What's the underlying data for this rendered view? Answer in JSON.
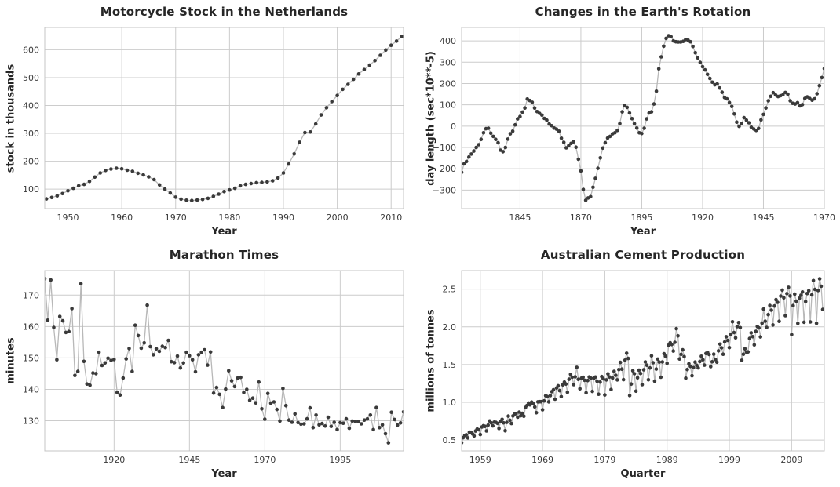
{
  "figure_title": "",
  "style": {
    "background": "#ffffff",
    "point_color": "#3a3a3a",
    "line_color": "#b8b8b8",
    "grid_color": "#cccccc",
    "spine_color": "#c4c4c4",
    "title_color": "#262626",
    "tick_color": "#3a3a3a"
  },
  "chart_data": [
    {
      "type": "line",
      "title": "Motorcycle Stock in the Netherlands",
      "xlabel": "Year",
      "ylabel": "stock in thousands",
      "x_start": 1946,
      "x_step": 1,
      "values": [
        65,
        70,
        76,
        84,
        94,
        103,
        112,
        117,
        128,
        143,
        158,
        167,
        172,
        175,
        173,
        168,
        164,
        157,
        151,
        144,
        134,
        115,
        100,
        86,
        71,
        64,
        60,
        59,
        61,
        63,
        67,
        74,
        82,
        91,
        97,
        103,
        112,
        117,
        120,
        123,
        124,
        126,
        130,
        140,
        158,
        190,
        226,
        268,
        303,
        305,
        334,
        366,
        392,
        414,
        436,
        458,
        476,
        494,
        513,
        529,
        545,
        561,
        580,
        599,
        616,
        631,
        648
      ],
      "xlim": [
        1945.7,
        2012.3
      ],
      "ylim": [
        30,
        680
      ],
      "xticks": [
        1950,
        1960,
        1970,
        1980,
        1990,
        2000,
        2010
      ],
      "xtick_labels": [
        "1950",
        "1960",
        "1970",
        "1980",
        "1990",
        "2000",
        "2010"
      ],
      "yticks": [
        100,
        200,
        300,
        400,
        500,
        600
      ],
      "ytick_labels": [
        "100",
        "200",
        "300",
        "400",
        "500",
        "600"
      ],
      "grid": true,
      "legend": "none",
      "markers": true
    },
    {
      "type": "line",
      "title": "Changes in the Earth's Rotation",
      "xlabel": "Year",
      "ylabel": "day length (sec*10**-5)",
      "x_start": 1821,
      "x_step": 1,
      "values": [
        -217,
        -177,
        -166,
        -145,
        -131,
        -117,
        -100,
        -87,
        -62,
        -31,
        -12,
        -10,
        -33,
        -48,
        -62,
        -78,
        -113,
        -120,
        -100,
        -61,
        -36,
        -24,
        6,
        34,
        45,
        66,
        85,
        127,
        120,
        112,
        85,
        68,
        60,
        52,
        36,
        28,
        10,
        2,
        -9,
        -14,
        -24,
        -57,
        -76,
        -102,
        -92,
        -81,
        -73,
        -99,
        -155,
        -210,
        -297,
        -348,
        -337,
        -331,
        -287,
        -245,
        -198,
        -149,
        -103,
        -78,
        -56,
        -48,
        -36,
        -31,
        -20,
        12,
        67,
        97,
        88,
        62,
        35,
        12,
        -9,
        -31,
        -35,
        -10,
        34,
        62,
        67,
        104,
        164,
        269,
        325,
        375,
        412,
        424,
        420,
        400,
        396,
        395,
        395,
        398,
        406,
        404,
        396,
        374,
        344,
        320,
        299,
        279,
        264,
        243,
        224,
        206,
        194,
        198,
        179,
        159,
        134,
        128,
        111,
        92,
        57,
        19,
        -1,
        12,
        40,
        28,
        16,
        -5,
        -13,
        -20,
        -11,
        29,
        55,
        85,
        119,
        140,
        157,
        146,
        139,
        143,
        147,
        158,
        150,
        119,
        107,
        104,
        110,
        95,
        101,
        130,
        137,
        130,
        122,
        128,
        152,
        190,
        228,
        270
      ],
      "xlim": [
        1821,
        1970
      ],
      "ylim": [
        -387,
        463
      ],
      "xticks": [
        1845,
        1870,
        1895,
        1920,
        1945,
        1970
      ],
      "xtick_labels": [
        "1845",
        "1870",
        "1895",
        "1920",
        "1945",
        "1970"
      ],
      "yticks": [
        -300,
        -200,
        -100,
        0,
        100,
        200,
        300,
        400
      ],
      "ytick_labels": [
        "−300",
        "−200",
        "−100",
        "0",
        "100",
        "200",
        "300",
        "400"
      ],
      "grid": true,
      "legend": "none",
      "markers": true
    },
    {
      "type": "line",
      "title": "Marathon Times",
      "xlabel": "Year",
      "ylabel": "minutes",
      "x_start": 1897,
      "x_step": 1,
      "values": [
        175.2,
        162.0,
        174.8,
        159.7,
        149.4,
        163.2,
        161.8,
        158.1,
        158.4,
        165.7,
        144.4,
        145.7,
        173.6,
        148.9,
        141.7,
        141.3,
        145.2,
        145.0,
        151.8,
        147.6,
        148.4,
        149.9,
        149.2,
        149.5,
        139.0,
        138.2,
        143.6,
        149.7,
        153.0,
        145.7,
        160.4,
        157.1,
        153.1,
        154.8,
        166.8,
        153.6,
        151.0,
        152.9,
        152.1,
        153.7,
        153.3,
        155.6,
        148.8,
        148.5,
        150.6,
        146.8,
        148.4,
        151.8,
        150.7,
        149.4,
        145.6,
        151.0,
        151.8,
        152.6,
        147.7,
        151.9,
        138.8,
        140.6,
        138.4,
        134.2,
        140.1,
        145.9,
        142.7,
        140.9,
        143.6,
        143.8,
        139.0,
        140.0,
        136.5,
        137.2,
        135.7,
        142.3,
        133.8,
        130.5,
        138.7,
        135.6,
        136.0,
        133.6,
        129.9,
        140.3,
        134.8,
        130.2,
        129.5,
        132.2,
        129.4,
        128.9,
        129.0,
        130.6,
        134.1,
        127.8,
        131.8,
        128.7,
        129.1,
        128.3,
        131.1,
        128.2,
        129.5,
        127.2,
        129.4,
        129.2,
        130.6,
        127.6,
        129.9,
        129.8,
        129.7,
        129.0,
        130.2,
        130.6,
        131.8,
        127.2,
        134.2,
        127.8,
        128.7,
        125.9,
        123.0,
        132.7,
        130.4,
        128.6,
        129.3,
        132.8
      ],
      "xlim": [
        1897,
        2016
      ],
      "ylim": [
        120.4,
        177.8
      ],
      "xticks": [
        1920,
        1945,
        1970,
        1995
      ],
      "xtick_labels": [
        "1920",
        "1945",
        "1970",
        "1995"
      ],
      "yticks": [
        130,
        140,
        150,
        160,
        170
      ],
      "ytick_labels": [
        "130",
        "140",
        "150",
        "160",
        "170"
      ],
      "grid": true,
      "legend": "none",
      "markers": true
    },
    {
      "type": "line",
      "title": "Australian Cement Production",
      "xlabel": "Quarter",
      "ylabel": "millions of tonnes",
      "x_start": 1956,
      "x_step": 0.25,
      "values": [
        0.465,
        0.532,
        0.561,
        0.57,
        0.529,
        0.604,
        0.603,
        0.582,
        0.554,
        0.62,
        0.646,
        0.637,
        0.573,
        0.673,
        0.69,
        0.681,
        0.621,
        0.698,
        0.753,
        0.728,
        0.688,
        0.737,
        0.735,
        0.722,
        0.653,
        0.745,
        0.774,
        0.728,
        0.623,
        0.734,
        0.817,
        0.762,
        0.719,
        0.819,
        0.844,
        0.85,
        0.803,
        0.87,
        0.823,
        0.855,
        0.815,
        0.932,
        0.959,
        0.991,
        0.967,
        1.003,
        0.983,
        0.939,
        0.862,
        1.006,
        1.009,
        1.009,
        0.902,
        1.019,
        1.088,
        1.076,
        1.006,
        1.089,
        1.142,
        1.167,
        1.042,
        1.19,
        1.22,
        1.155,
        1.075,
        1.232,
        1.268,
        1.242,
        1.133,
        1.306,
        1.371,
        1.333,
        1.234,
        1.338,
        1.464,
        1.305,
        1.179,
        1.32,
        1.333,
        1.292,
        1.126,
        1.289,
        1.336,
        1.32,
        1.145,
        1.32,
        1.335,
        1.281,
        1.107,
        1.268,
        1.341,
        1.312,
        1.098,
        1.297,
        1.377,
        1.336,
        1.17,
        1.322,
        1.411,
        1.359,
        1.297,
        1.434,
        1.529,
        1.44,
        1.301,
        1.558,
        1.651,
        1.581,
        1.09,
        1.242,
        1.419,
        1.38,
        1.148,
        1.324,
        1.425,
        1.383,
        1.234,
        1.431,
        1.535,
        1.492,
        1.298,
        1.455,
        1.615,
        1.525,
        1.281,
        1.441,
        1.573,
        1.533,
        1.333,
        1.535,
        1.645,
        1.61,
        1.518,
        1.758,
        1.79,
        1.766,
        1.68,
        1.795,
        1.976,
        1.88,
        1.575,
        1.635,
        1.695,
        1.605,
        1.32,
        1.435,
        1.51,
        1.475,
        1.353,
        1.46,
        1.533,
        1.492,
        1.456,
        1.541,
        1.61,
        1.563,
        1.493,
        1.648,
        1.661,
        1.634,
        1.473,
        1.537,
        1.638,
        1.568,
        1.532,
        1.682,
        1.771,
        1.722,
        1.637,
        1.8,
        1.869,
        1.821,
        1.725,
        1.899,
        2.067,
        1.925,
        1.854,
        2.003,
        2.057,
        1.99,
        1.557,
        1.637,
        1.709,
        1.664,
        1.668,
        1.846,
        1.921,
        1.87,
        1.762,
        1.94,
        2.005,
        1.986,
        1.867,
        2.049,
        2.236,
        2.075,
        1.993,
        2.162,
        2.284,
        2.221,
        2.025,
        2.276,
        2.361,
        2.325,
        2.074,
        2.408,
        2.487,
        2.384,
        2.148,
        2.44,
        2.524,
        2.409,
        1.898,
        2.282,
        2.434,
        2.341,
        2.046,
        2.379,
        2.42,
        2.462,
        2.061,
        2.336,
        2.442,
        2.479,
        2.065,
        2.424,
        2.613,
        2.497,
        2.047,
        2.482,
        2.637,
        2.538,
        2.231
      ],
      "xlim": [
        1956,
        2014.25
      ],
      "ylim": [
        0.356,
        2.746
      ],
      "xticks": [
        1959,
        1969,
        1979,
        1989,
        1999,
        2009
      ],
      "xtick_labels": [
        "1959",
        "1969",
        "1979",
        "1989",
        "1999",
        "2009"
      ],
      "yticks": [
        0.5,
        1.0,
        1.5,
        2.0,
        2.5
      ],
      "ytick_labels": [
        "0.5",
        "1.0",
        "1.5",
        "2.0",
        "2.5"
      ],
      "grid": true,
      "legend": "none",
      "markers": true
    }
  ]
}
